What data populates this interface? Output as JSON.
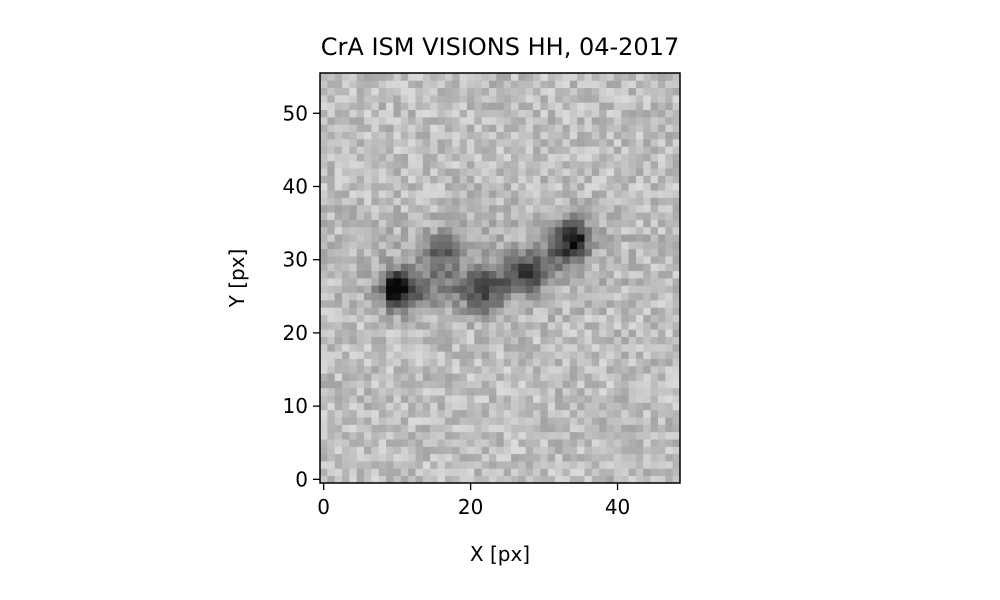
{
  "chart_data": {
    "type": "heatmap",
    "title": "CrA ISM VISIONS HH, 04-2017",
    "xlabel": "X [px]",
    "ylabel": "Y [px]",
    "colormap": "gray",
    "xlim": [
      0,
      49
    ],
    "ylim": [
      0,
      56
    ],
    "xticks": [
      "0",
      "20",
      "40"
    ],
    "yticks": [
      "0",
      "10",
      "20",
      "30",
      "40",
      "50"
    ],
    "grid": false,
    "image_size": {
      "columns": 49,
      "rows": 56
    },
    "features": [
      {
        "label": "knot",
        "x": 10,
        "y": 26,
        "intensity": 1.0
      },
      {
        "label": "knot",
        "x": 34,
        "y": 33,
        "intensity": 0.9
      },
      {
        "label": "knot",
        "x": 22,
        "y": 25,
        "intensity": 0.55
      },
      {
        "label": "knot",
        "x": 16,
        "y": 31,
        "intensity": 0.55
      },
      {
        "label": "knot",
        "x": 28,
        "y": 28,
        "intensity": 0.5
      }
    ],
    "background_level": 0.22,
    "noise_amplitude": 0.12
  }
}
